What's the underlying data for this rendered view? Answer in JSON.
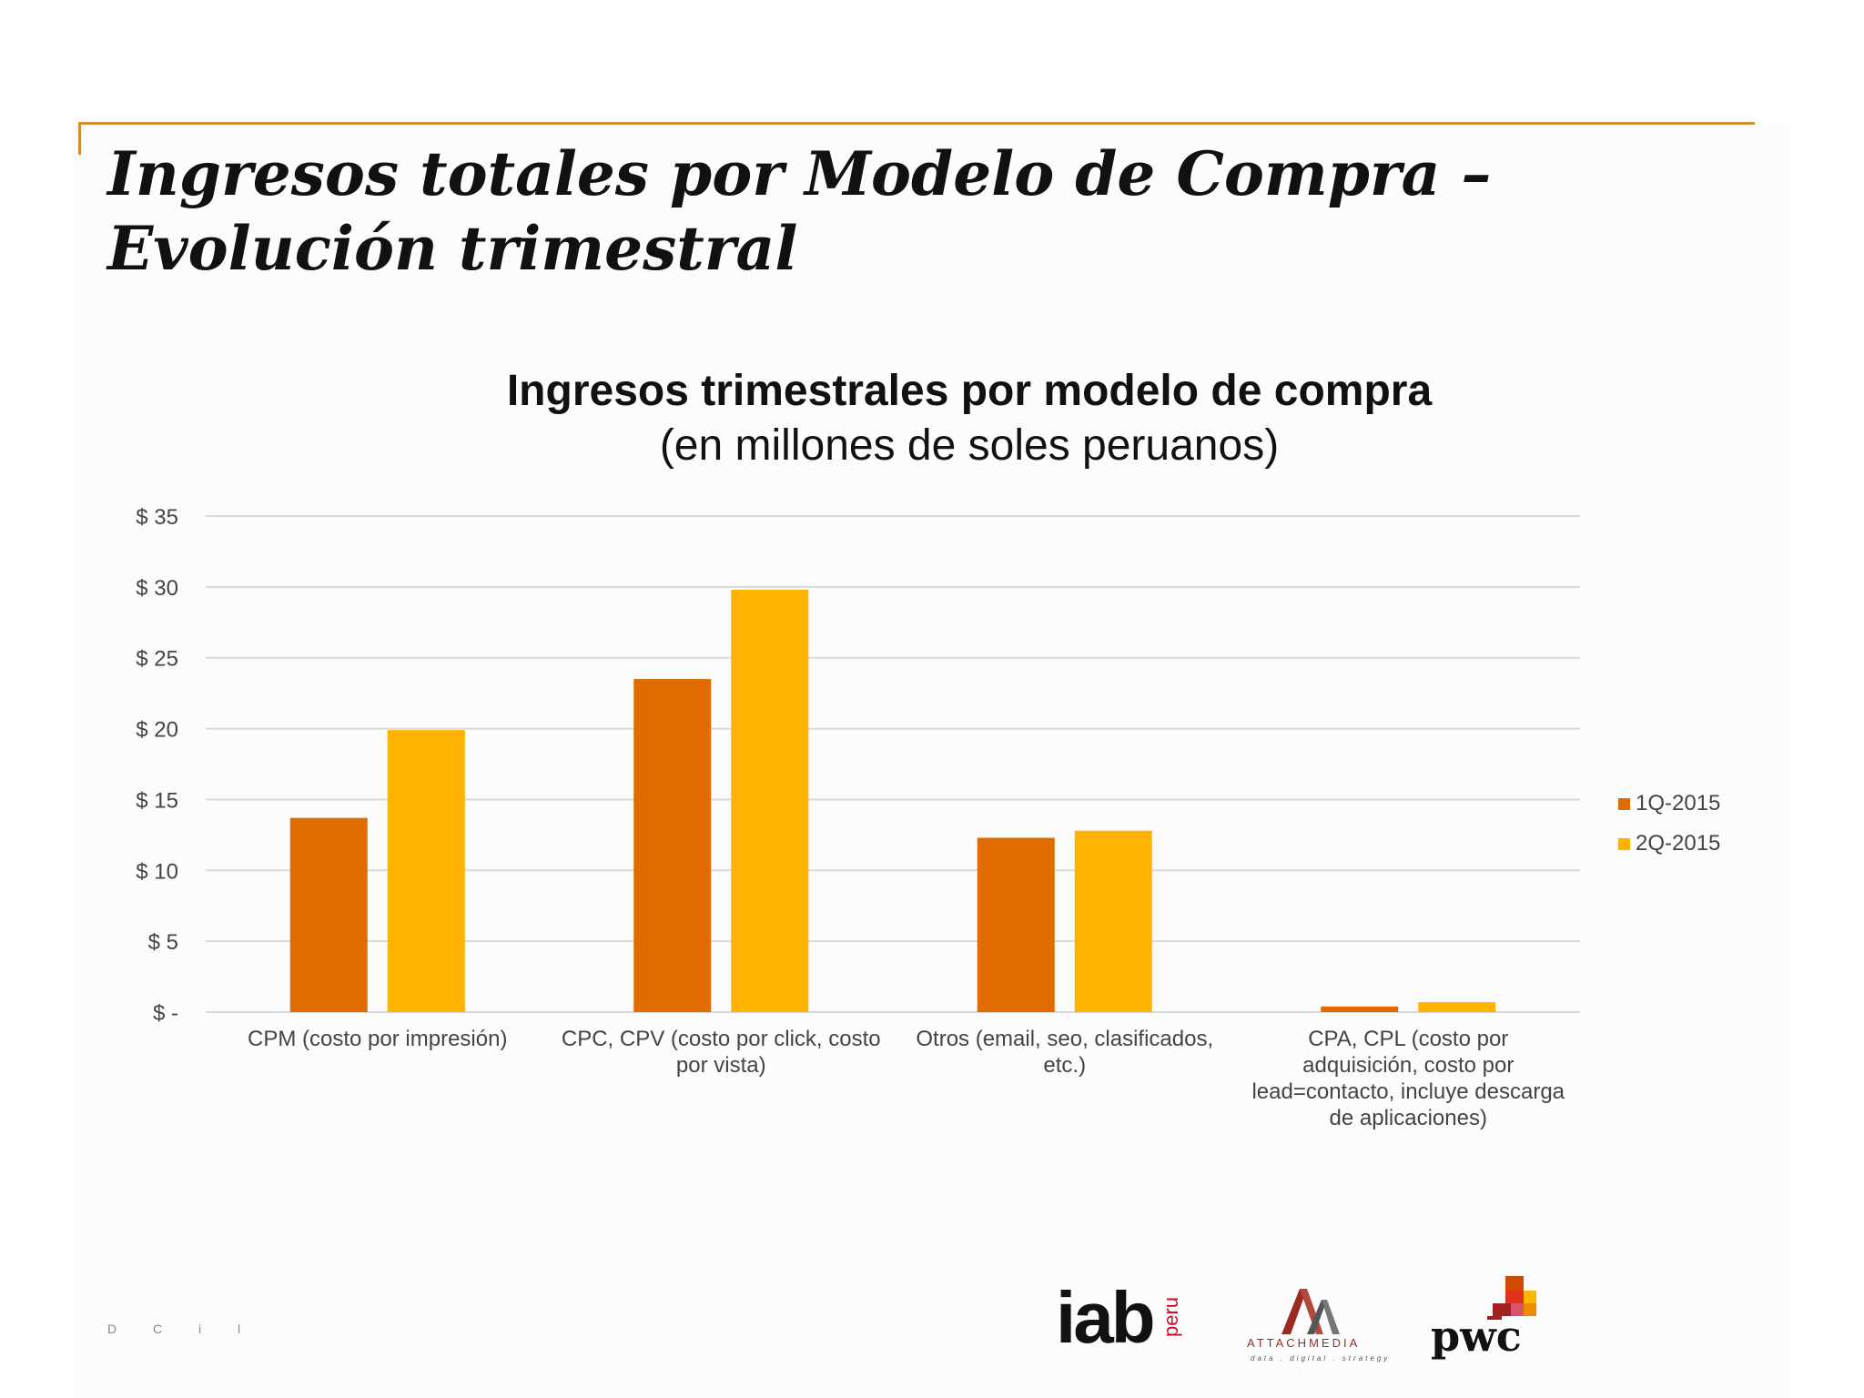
{
  "slide": {
    "title_line1": "Ingresos totales por Modelo de Compra –",
    "title_line2": "Evolución trimestral",
    "page_number": "D  C  i  l"
  },
  "chart_data": {
    "type": "bar",
    "title": "Ingresos trimestrales por modelo de compra",
    "subtitle": "(en millones de soles peruanos)",
    "categories": [
      [
        "CPM (costo por impresión)"
      ],
      [
        "CPC, CPV (costo por click, costo",
        "por vista)"
      ],
      [
        "Otros (email, seo, clasificados,",
        "etc.)"
      ],
      [
        "CPA, CPL (costo por",
        "adquisición, costo por",
        "lead=contacto, incluye descarga",
        "de aplicaciones)"
      ]
    ],
    "series": [
      {
        "name": "1Q-2015",
        "color": "#e06c00",
        "values": [
          13.7,
          23.5,
          12.3,
          0.4
        ]
      },
      {
        "name": "2Q-2015",
        "color": "#ffb300",
        "values": [
          19.9,
          29.8,
          12.8,
          0.7
        ]
      }
    ],
    "ylim": [
      0,
      35
    ],
    "yticks": [
      0,
      5,
      10,
      15,
      20,
      25,
      30,
      35
    ],
    "ytick_labels": [
      "$ -",
      "$ 5",
      "$ 10",
      "$ 15",
      "$ 20",
      "$ 25",
      "$ 30",
      "$ 35"
    ],
    "grid": true,
    "legend_position": "right"
  },
  "logos": {
    "iab": "iab",
    "iab_suffix": "peru",
    "attach": "ATTACHMEDIA",
    "attach_tagline": "data . digital . strategy",
    "pwc": "pwc"
  }
}
